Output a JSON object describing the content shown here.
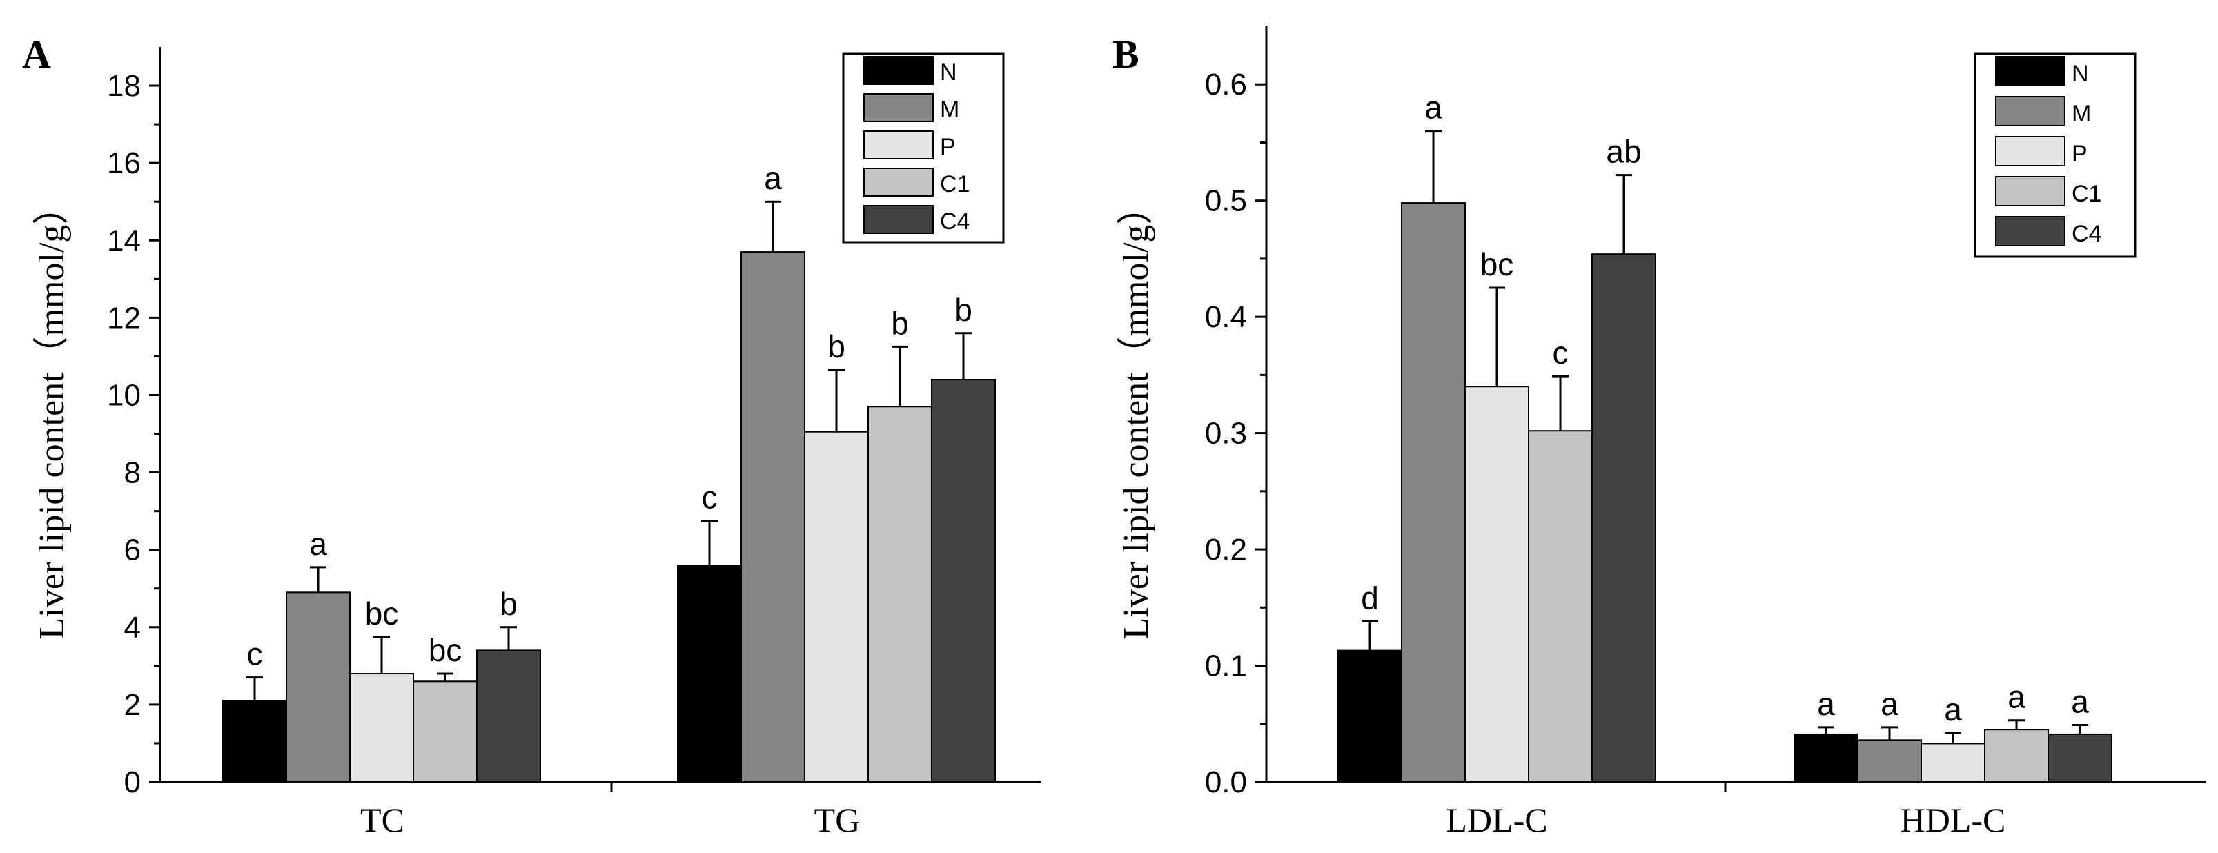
{
  "chart_data": [
    {
      "panel": "A",
      "type": "bar",
      "ylabel": "Liver lipid content（mmol/g）",
      "ylim": [
        0,
        19
      ],
      "yticks": [
        "0",
        "2",
        "4",
        "6",
        "8",
        "10",
        "12",
        "14",
        "16",
        "18"
      ],
      "categories": [
        "TC",
        "TG"
      ],
      "series": [
        {
          "name": "N",
          "color": "#000000",
          "values": [
            2.1,
            5.6
          ],
          "errors": [
            0.6,
            1.15
          ],
          "letters": [
            "c",
            "c"
          ]
        },
        {
          "name": "M",
          "color": "#868686",
          "values": [
            4.9,
            13.7
          ],
          "errors": [
            0.65,
            1.3
          ],
          "letters": [
            "a",
            "a"
          ]
        },
        {
          "name": "P",
          "color": "#e4e4e4",
          "values": [
            2.8,
            9.05
          ],
          "errors": [
            0.95,
            1.6
          ],
          "letters": [
            "bc",
            "b"
          ]
        },
        {
          "name": "C1",
          "color": "#c4c4c4",
          "values": [
            2.6,
            9.7
          ],
          "errors": [
            0.2,
            1.55
          ],
          "letters": [
            "bc",
            "b"
          ]
        },
        {
          "name": "C4",
          "color": "#414141",
          "values": [
            3.4,
            10.4
          ],
          "errors": [
            0.6,
            1.2
          ],
          "letters": [
            "b",
            "b"
          ]
        }
      ]
    },
    {
      "panel": "B",
      "type": "bar",
      "ylabel": "Liver lipid content（mmol/g）",
      "ylim": [
        0,
        0.65
      ],
      "yticks": [
        "0.0",
        "0.1",
        "0.2",
        "0.3",
        "0.4",
        "0.5",
        "0.6"
      ],
      "categories": [
        "LDL-C",
        "HDL-C"
      ],
      "series": [
        {
          "name": "N",
          "color": "#000000",
          "values": [
            0.113,
            0.041
          ],
          "errors": [
            0.025,
            0.006
          ],
          "letters": [
            "d",
            "a"
          ]
        },
        {
          "name": "M",
          "color": "#868686",
          "values": [
            0.498,
            0.036
          ],
          "errors": [
            0.062,
            0.011
          ],
          "letters": [
            "a",
            "a"
          ]
        },
        {
          "name": "P",
          "color": "#e4e4e4",
          "values": [
            0.34,
            0.033
          ],
          "errors": [
            0.085,
            0.009
          ],
          "letters": [
            "bc",
            "a"
          ]
        },
        {
          "name": "C1",
          "color": "#c4c4c4",
          "values": [
            0.302,
            0.045
          ],
          "errors": [
            0.047,
            0.008
          ],
          "letters": [
            "c",
            "a"
          ]
        },
        {
          "name": "C4",
          "color": "#414141",
          "values": [
            0.454,
            0.041
          ],
          "errors": [
            0.068,
            0.008
          ],
          "letters": [
            "ab",
            "a"
          ]
        }
      ]
    }
  ]
}
